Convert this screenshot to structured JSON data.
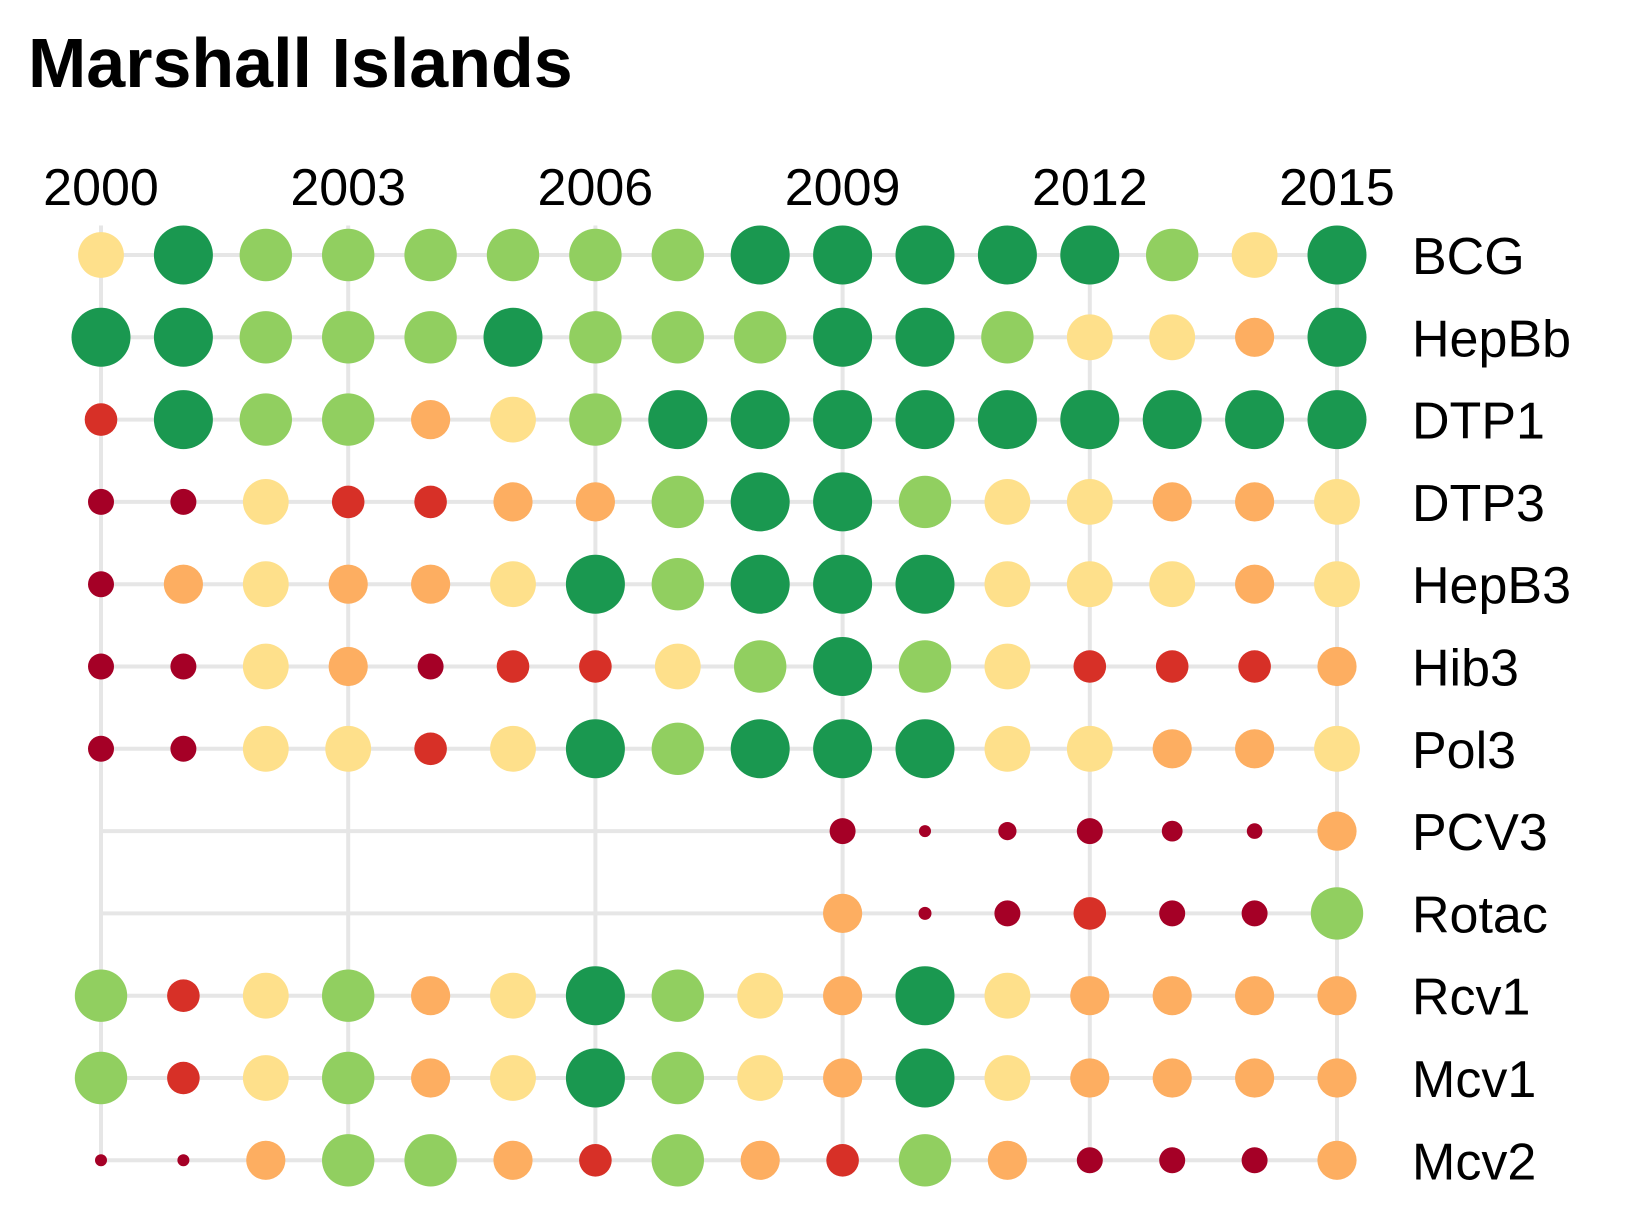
{
  "title": "Marshall Islands",
  "chart_data": {
    "type": "dot-matrix",
    "title": "Marshall Islands",
    "x": [
      2000,
      2001,
      2002,
      2003,
      2004,
      2005,
      2006,
      2007,
      2008,
      2009,
      2010,
      2011,
      2012,
      2013,
      2014,
      2015
    ],
    "x_tick_labels": [
      "2000",
      "2003",
      "2006",
      "2009",
      "2012",
      "2015"
    ],
    "x_tick_values": [
      2000,
      2003,
      2006,
      2009,
      2012,
      2015
    ],
    "x_axis_position": "top",
    "row_label_position": "right",
    "grid": true,
    "level_scale": [
      1,
      2,
      3,
      4,
      5,
      6
    ],
    "level_colors": {
      "1": "#a50026",
      "2": "#d73027",
      "3": "#fdae61",
      "4": "#fee08b",
      "5": "#91cf60",
      "6": "#1a9850"
    },
    "series": [
      {
        "name": "BCG",
        "values": [
          4,
          6,
          5,
          5,
          5,
          5,
          5,
          5,
          6,
          6,
          6,
          6,
          6,
          5,
          4,
          6
        ]
      },
      {
        "name": "HepBb",
        "values": [
          6,
          6,
          5,
          5,
          5,
          6,
          5,
          5,
          5,
          6,
          6,
          5,
          4,
          4,
          3,
          6
        ]
      },
      {
        "name": "DTP1",
        "values": [
          2,
          6,
          5,
          5,
          3,
          4,
          5,
          6,
          6,
          6,
          6,
          6,
          6,
          6,
          6,
          6
        ]
      },
      {
        "name": "DTP3",
        "values": [
          1,
          1,
          4,
          2,
          2,
          3,
          3,
          5,
          6,
          6,
          5,
          4,
          4,
          3,
          3,
          4
        ]
      },
      {
        "name": "HepB3",
        "values": [
          1,
          3,
          4,
          3,
          3,
          4,
          6,
          5,
          6,
          6,
          6,
          4,
          4,
          4,
          3,
          4
        ]
      },
      {
        "name": "Hib3",
        "values": [
          1,
          1,
          4,
          3,
          1,
          2,
          2,
          4,
          5,
          6,
          5,
          4,
          2,
          2,
          2,
          3
        ]
      },
      {
        "name": "Pol3",
        "values": [
          1,
          1,
          4,
          4,
          2,
          4,
          6,
          5,
          6,
          6,
          6,
          4,
          4,
          3,
          3,
          4
        ]
      },
      {
        "name": "PCV3",
        "values": [
          null,
          null,
          null,
          null,
          null,
          null,
          null,
          null,
          null,
          1,
          0.4,
          0.7,
          1,
          0.8,
          0.6,
          3
        ]
      },
      {
        "name": "Rotac",
        "values": [
          null,
          null,
          null,
          null,
          null,
          null,
          null,
          null,
          null,
          3,
          0.5,
          1,
          2,
          1,
          1,
          5
        ]
      },
      {
        "name": "Rcv1",
        "values": [
          5,
          2,
          4,
          5,
          3,
          4,
          6,
          5,
          4,
          3,
          6,
          4,
          3,
          3,
          3,
          3
        ]
      },
      {
        "name": "Mcv1",
        "values": [
          5,
          2,
          4,
          5,
          3,
          4,
          6,
          5,
          4,
          3,
          6,
          4,
          3,
          3,
          3,
          3
        ]
      },
      {
        "name": "Mcv2",
        "values": [
          0.2,
          0.2,
          3,
          5,
          5,
          3,
          2,
          5,
          3,
          2,
          5,
          3,
          1,
          1,
          1,
          3
        ]
      }
    ]
  }
}
